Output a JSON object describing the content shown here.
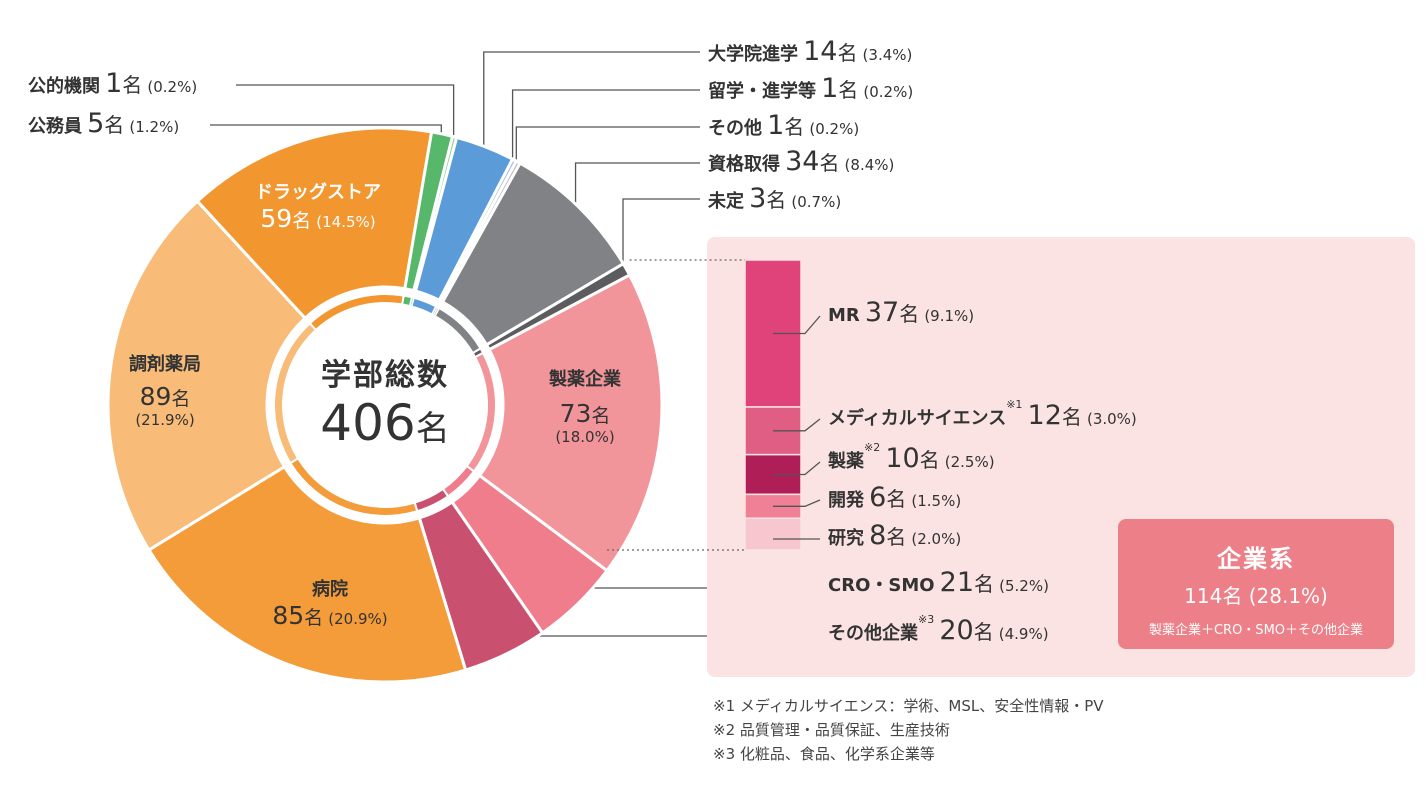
{
  "chart_data": {
    "type": "pie",
    "title": "学部総数",
    "total": "406",
    "unit": "名",
    "series": [
      {
        "label": "製薬企業",
        "value": 73,
        "pct": "(18.0%)",
        "color": "#f2959a"
      },
      {
        "label": "CRO・SMO",
        "value": 21,
        "pct": "(5.2%)",
        "color": "#ef7d8b"
      },
      {
        "label": "その他企業",
        "value": 20,
        "pct": "(4.9%)",
        "color": "#c9506f",
        "note_mark": "※3"
      },
      {
        "label": "病院",
        "value": 85,
        "pct": "(20.9%)",
        "color": "#f49b3a"
      },
      {
        "label": "調剤薬局",
        "value": 89,
        "pct": "(21.9%)",
        "color": "#f8bb78"
      },
      {
        "label": "ドラッグストア",
        "value": 59,
        "pct": "(14.5%)",
        "color": "#f29630"
      },
      {
        "label": "公務員",
        "value": 5,
        "pct": "(1.2%)",
        "color": "#57b86b"
      },
      {
        "label": "公的機関",
        "value": 1,
        "pct": "(0.2%)",
        "color": "#8bcf8e"
      },
      {
        "label": "大学院進学",
        "value": 14,
        "pct": "(3.4%)",
        "color": "#5b9cd8"
      },
      {
        "label": "留学・進学等",
        "value": 1,
        "pct": "(0.2%)",
        "color": "#9ec2e6"
      },
      {
        "label": "その他",
        "value": 1,
        "pct": "(0.2%)",
        "color": "#b9b9b9"
      },
      {
        "label": "資格取得",
        "value": 34,
        "pct": "(8.4%)",
        "color": "#808285"
      },
      {
        "label": "未定",
        "value": 3,
        "pct": "(0.7%)",
        "color": "#5c5c5e"
      }
    ],
    "pharma_breakdown": [
      {
        "label": "MR",
        "value": 37,
        "pct": "(9.1%)",
        "color": "#e0427a"
      },
      {
        "label": "メディカルサイエンス",
        "value": 12,
        "pct": "(3.0%)",
        "color": "#e05d84",
        "note_mark": "※1"
      },
      {
        "label": "製薬",
        "value": 10,
        "pct": "(2.5%)",
        "color": "#b01e57",
        "note_mark": "※2"
      },
      {
        "label": "開発",
        "value": 6,
        "pct": "(1.5%)",
        "color": "#ef8096"
      },
      {
        "label": "研究",
        "value": 8,
        "pct": "(2.0%)",
        "color": "#f7c6cf"
      }
    ],
    "summary": {
      "title": "企業系",
      "value": "114名",
      "pct": "(28.1%)",
      "formula": "製薬企業＋CRO・SMO＋その他企業"
    },
    "notes": [
      "※1 メディカルサイエンス：学術、MSL、安全性情報・PV",
      "※2 品質管理・品質保証、生産技術",
      "※3 化粧品、食品、化学系企業等"
    ]
  }
}
